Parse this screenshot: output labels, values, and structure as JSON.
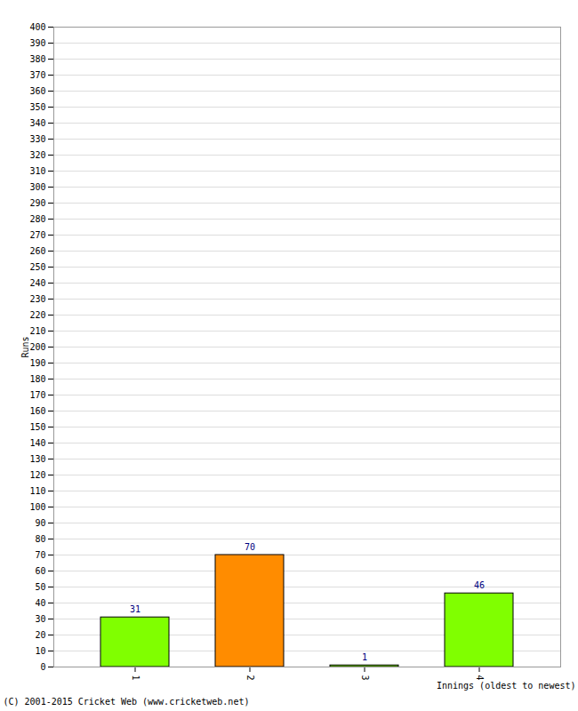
{
  "chart_data": {
    "type": "bar",
    "categories": [
      "1",
      "2",
      "3",
      "4"
    ],
    "values": [
      31,
      70,
      1,
      46
    ],
    "colors": [
      "#80ff00",
      "#ff8c00",
      "#80ff00",
      "#80ff00"
    ],
    "xlabel": "Innings (oldest to newest)",
    "ylabel": "Runs",
    "caption": "(C) 2001-2015 Cricket Web (www.cricketweb.net)",
    "ylim": [
      0,
      400
    ],
    "yticks": [
      0,
      10,
      20,
      30,
      40,
      50,
      60,
      70,
      80,
      90,
      100,
      110,
      120,
      130,
      140,
      150,
      160,
      170,
      180,
      190,
      200,
      210,
      220,
      230,
      240,
      250,
      260,
      270,
      280,
      290,
      300,
      310,
      320,
      330,
      340,
      350,
      360,
      370,
      380,
      390,
      400
    ],
    "grid": true,
    "data_labels": true
  }
}
